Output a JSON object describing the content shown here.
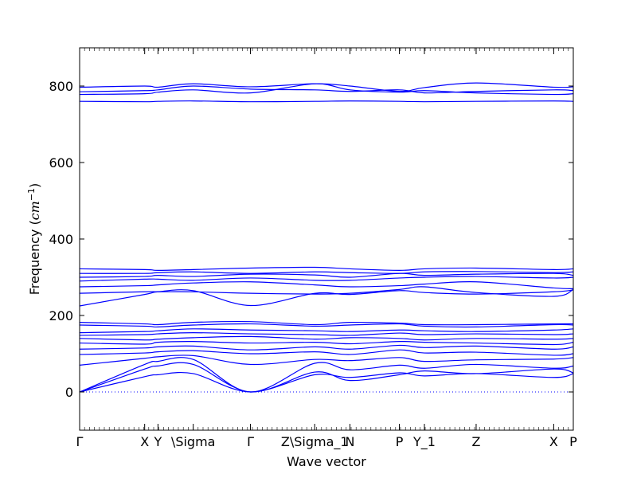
{
  "chart_data": {
    "type": "line",
    "title": "",
    "xlabel": "Wave vector",
    "ylabel": "Frequency",
    "ylabel_unit": "(cm^{-1})",
    "ylabel_unit_base": "cm",
    "ylabel_unit_exponent": "−1",
    "ylim": [
      -100,
      900
    ],
    "yticks": [
      0,
      200,
      400,
      600,
      800
    ],
    "xlim": [
      0,
      6.3
    ],
    "xticks": [
      {
        "label": "Γ",
        "x": 0.0
      },
      {
        "label": "X",
        "x": 0.83
      },
      {
        "label": "Y",
        "x": 1.0
      },
      {
        "label": "\\Sigma",
        "x": 1.45
      },
      {
        "label": "Γ",
        "x": 2.18
      },
      {
        "label": "Z\\Sigma_1",
        "x": 3.0
      },
      {
        "label": "N",
        "x": 3.45
      },
      {
        "label": "P",
        "x": 4.08
      },
      {
        "label": "Y_1",
        "x": 4.4
      },
      {
        "label": "Z",
        "x": 5.06
      },
      {
        "label": "X",
        "x": 6.05
      },
      {
        "label": "P",
        "x": 6.3
      }
    ],
    "line_color": "#0000ff",
    "zero_line": {
      "y": 0,
      "style": "dotted",
      "color": "#0000ff"
    },
    "grid": false,
    "series": [
      {
        "x": [
          0,
          0.83,
          1.0,
          1.45,
          2.18,
          3.0,
          3.45,
          4.08,
          4.4,
          5.06,
          6.05,
          6.3
        ],
        "values": [
          760,
          759,
          760,
          761,
          759,
          760,
          761,
          760,
          759,
          760,
          761,
          760
        ]
      },
      {
        "x": [
          0,
          0.83,
          1.0,
          1.45,
          2.18,
          3.0,
          3.45,
          4.08,
          4.4,
          5.06,
          6.05,
          6.3
        ],
        "values": [
          778,
          780,
          784,
          790,
          782,
          806,
          790,
          784,
          788,
          782,
          778,
          780
        ]
      },
      {
        "x": [
          0,
          0.83,
          1.0,
          1.45,
          2.18,
          3.0,
          3.45,
          4.08,
          4.4,
          5.06,
          6.05,
          6.3
        ],
        "values": [
          785,
          788,
          790,
          800,
          792,
          790,
          786,
          790,
          782,
          786,
          790,
          788
        ]
      },
      {
        "x": [
          0,
          0.83,
          1.0,
          1.45,
          2.18,
          3.0,
          3.45,
          4.08,
          4.4,
          5.06,
          6.05,
          6.3
        ],
        "values": [
          797,
          800,
          797,
          806,
          798,
          806,
          800,
          786,
          796,
          808,
          797,
          798
        ]
      },
      {
        "x": [
          0,
          0.83,
          1.0,
          1.45,
          2.18,
          3.0,
          3.45,
          4.08,
          4.4,
          5.06,
          6.05,
          6.3
        ],
        "values": [
          225,
          255,
          262,
          265,
          226,
          258,
          255,
          265,
          260,
          256,
          262,
          267
        ]
      },
      {
        "x": [
          0,
          0.83,
          1.0,
          1.45,
          2.18,
          3.0,
          3.45,
          4.08,
          4.4,
          5.06,
          6.05,
          6.3
        ],
        "values": [
          258,
          262,
          262,
          262,
          258,
          256,
          258,
          268,
          275,
          260,
          250,
          268
        ]
      },
      {
        "x": [
          0,
          0.83,
          1.0,
          1.45,
          2.18,
          3.0,
          3.45,
          4.08,
          4.4,
          5.06,
          6.05,
          6.3
        ],
        "values": [
          275,
          278,
          280,
          285,
          288,
          280,
          275,
          278,
          282,
          288,
          272,
          270
        ]
      },
      {
        "x": [
          0,
          0.83,
          1.0,
          1.45,
          2.18,
          3.0,
          3.45,
          4.08,
          4.4,
          5.06,
          6.05,
          6.3
        ],
        "values": [
          290,
          295,
          295,
          292,
          298,
          292,
          292,
          298,
          300,
          302,
          298,
          300
        ]
      },
      {
        "x": [
          0,
          0.83,
          1.0,
          1.45,
          2.18,
          3.0,
          3.45,
          4.08,
          4.4,
          5.06,
          6.05,
          6.3
        ],
        "values": [
          300,
          302,
          305,
          302,
          308,
          306,
          300,
          310,
          305,
          308,
          310,
          305
        ]
      },
      {
        "x": [
          0,
          0.83,
          1.0,
          1.45,
          2.18,
          3.0,
          3.45,
          4.08,
          4.4,
          5.06,
          6.05,
          6.3
        ],
        "values": [
          310,
          310,
          312,
          314,
          310,
          314,
          312,
          310,
          314,
          315,
          312,
          314
        ]
      },
      {
        "x": [
          0,
          0.83,
          1.0,
          1.45,
          2.18,
          3.0,
          3.45,
          4.08,
          4.4,
          5.06,
          6.05,
          6.3
        ],
        "values": [
          322,
          320,
          318,
          320,
          324,
          326,
          322,
          318,
          322,
          324,
          320,
          322
        ]
      },
      {
        "x": [
          0,
          0.83,
          1.0,
          1.45,
          2.18,
          3.0,
          3.45,
          4.08,
          4.4,
          5.06,
          6.05,
          6.3
        ],
        "values": [
          0,
          40,
          45,
          48,
          0,
          45,
          38,
          50,
          42,
          48,
          38,
          48
        ]
      },
      {
        "x": [
          0,
          0.83,
          1.0,
          1.45,
          2.18,
          3.0,
          3.45,
          4.08,
          4.4,
          5.06,
          6.05,
          6.3
        ],
        "values": [
          0,
          60,
          68,
          72,
          0,
          52,
          30,
          45,
          55,
          48,
          60,
          50
        ]
      },
      {
        "x": [
          0,
          0.83,
          1.0,
          1.45,
          2.18,
          3.0,
          3.45,
          4.08,
          4.4,
          5.06,
          6.05,
          6.3
        ],
        "values": [
          0,
          72,
          80,
          85,
          0,
          75,
          58,
          70,
          62,
          72,
          62,
          68
        ]
      },
      {
        "x": [
          0,
          0.83,
          1.0,
          1.45,
          2.18,
          3.0,
          3.45,
          4.08,
          4.4,
          5.06,
          6.05,
          6.3
        ],
        "values": [
          70,
          88,
          92,
          95,
          72,
          85,
          82,
          90,
          80,
          84,
          86,
          90
        ]
      },
      {
        "x": [
          0,
          0.83,
          1.0,
          1.45,
          2.18,
          3.0,
          3.45,
          4.08,
          4.4,
          5.06,
          6.05,
          6.3
        ],
        "values": [
          98,
          102,
          105,
          108,
          100,
          105,
          98,
          110,
          102,
          104,
          96,
          100
        ]
      },
      {
        "x": [
          0,
          0.83,
          1.0,
          1.45,
          2.18,
          3.0,
          3.45,
          4.08,
          4.4,
          5.06,
          6.05,
          6.3
        ],
        "values": [
          112,
          115,
          118,
          120,
          110,
          118,
          112,
          122,
          116,
          120,
          112,
          118
        ]
      },
      {
        "x": [
          0,
          0.83,
          1.0,
          1.45,
          2.18,
          3.0,
          3.45,
          4.08,
          4.4,
          5.06,
          6.05,
          6.3
        ],
        "values": [
          128,
          125,
          130,
          132,
          128,
          130,
          126,
          132,
          130,
          128,
          124,
          130
        ]
      },
      {
        "x": [
          0,
          0.83,
          1.0,
          1.45,
          2.18,
          3.0,
          3.45,
          4.08,
          4.4,
          5.06,
          6.05,
          6.3
        ],
        "values": [
          140,
          136,
          138,
          142,
          145,
          138,
          142,
          140,
          136,
          140,
          138,
          140
        ]
      },
      {
        "x": [
          0,
          0.83,
          1.0,
          1.45,
          2.18,
          3.0,
          3.45,
          4.08,
          4.4,
          5.06,
          6.05,
          6.3
        ],
        "values": [
          148,
          150,
          152,
          155,
          152,
          150,
          148,
          154,
          150,
          152,
          150,
          152
        ]
      },
      {
        "x": [
          0,
          0.83,
          1.0,
          1.45,
          2.18,
          3.0,
          3.45,
          4.08,
          4.4,
          5.06,
          6.05,
          6.3
        ],
        "values": [
          155,
          158,
          160,
          165,
          162,
          160,
          158,
          162,
          160,
          158,
          162,
          165
        ]
      },
      {
        "x": [
          0,
          0.83,
          1.0,
          1.45,
          2.18,
          3.0,
          3.45,
          4.08,
          4.4,
          5.06,
          6.05,
          6.3
        ],
        "values": [
          175,
          172,
          170,
          175,
          178,
          172,
          175,
          178,
          172,
          170,
          176,
          175
        ]
      },
      {
        "x": [
          0,
          0.83,
          1.0,
          1.45,
          2.18,
          3.0,
          3.45,
          4.08,
          4.4,
          5.06,
          6.05,
          6.3
        ],
        "values": [
          182,
          178,
          176,
          182,
          184,
          176,
          182,
          180,
          176,
          176,
          178,
          178
        ]
      }
    ]
  }
}
